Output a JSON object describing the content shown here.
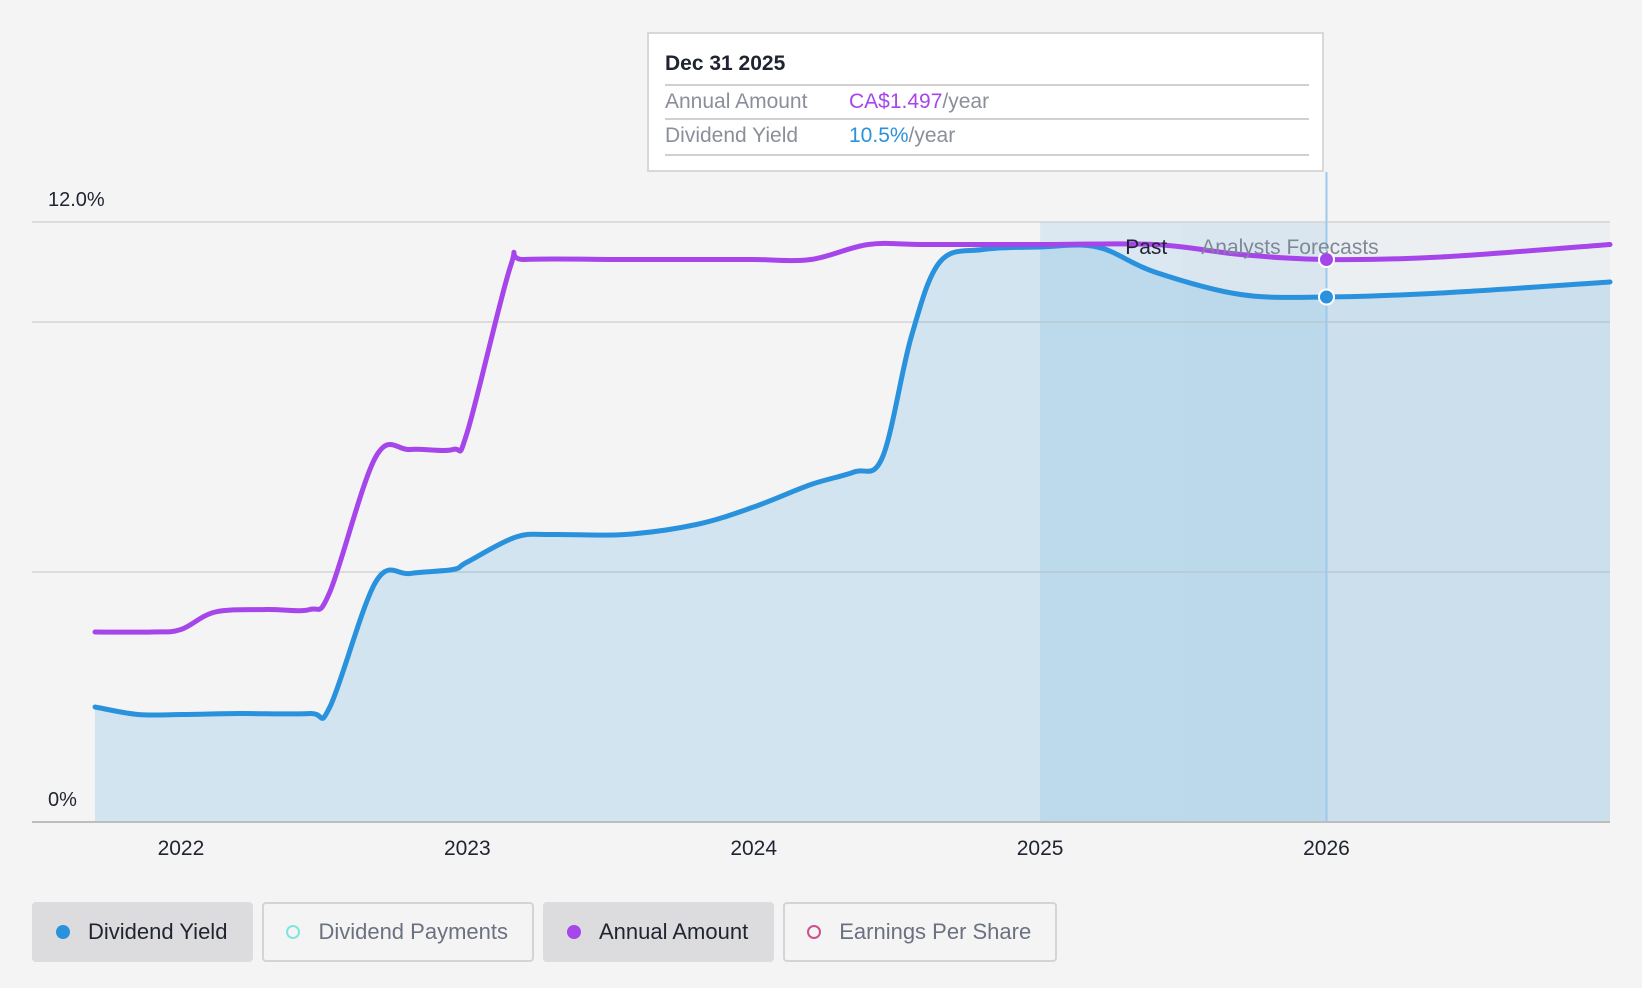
{
  "tooltip": {
    "date": "Dec 31 2025",
    "rows": [
      {
        "label": "Annual Amount",
        "value": "CA$1.497",
        "suffix": "/year",
        "color": "#a646ea"
      },
      {
        "label": "Dividend Yield",
        "value": "10.5%",
        "suffix": "/year",
        "color": "#2a92dd"
      }
    ]
  },
  "legend": [
    {
      "label": "Dividend Yield",
      "active": true,
      "color": "#2a92dd",
      "filled": true
    },
    {
      "label": "Dividend Payments",
      "active": false,
      "color": "#7ee6dd",
      "filled": false
    },
    {
      "label": "Annual Amount",
      "active": true,
      "color": "#a646ea",
      "filled": true
    },
    {
      "label": "Earnings Per Share",
      "active": false,
      "color": "#d0508c",
      "filled": false
    }
  ],
  "chart_data": {
    "type": "line",
    "y_ticks": [
      "12.0%",
      "0%"
    ],
    "ylim": [
      0,
      12.0
    ],
    "x_ticks": [
      "2022",
      "2023",
      "2024",
      "2025",
      "2026"
    ],
    "xlim": [
      2021.48,
      2026.99
    ],
    "region_labels": {
      "past": "Past",
      "forecast": "Analysts Forecasts"
    },
    "past_start": 2025.0,
    "forecast_start": 2025.5,
    "highlight_x": 2026.0,
    "series": [
      {
        "name": "Dividend Yield",
        "color": "#2a92dd",
        "fill": true,
        "points": [
          [
            2021.7,
            2.3
          ],
          [
            2021.85,
            2.15
          ],
          [
            2022.0,
            2.15
          ],
          [
            2022.2,
            2.17
          ],
          [
            2022.45,
            2.17
          ],
          [
            2022.52,
            2.3
          ],
          [
            2022.68,
            4.8
          ],
          [
            2022.8,
            4.97
          ],
          [
            2022.95,
            5.05
          ],
          [
            2023.0,
            5.2
          ],
          [
            2023.17,
            5.7
          ],
          [
            2023.3,
            5.75
          ],
          [
            2023.55,
            5.75
          ],
          [
            2023.8,
            5.95
          ],
          [
            2024.0,
            6.3
          ],
          [
            2024.2,
            6.75
          ],
          [
            2024.35,
            7.0
          ],
          [
            2024.45,
            7.3
          ],
          [
            2024.55,
            9.7
          ],
          [
            2024.65,
            11.2
          ],
          [
            2024.8,
            11.45
          ],
          [
            2025.0,
            11.5
          ],
          [
            2025.2,
            11.5
          ],
          [
            2025.4,
            11.0
          ],
          [
            2025.7,
            10.55
          ],
          [
            2026.0,
            10.5
          ],
          [
            2026.4,
            10.58
          ],
          [
            2026.99,
            10.8
          ]
        ]
      },
      {
        "name": "Annual Amount",
        "color": "#a646ea",
        "fill": false,
        "points": [
          [
            2021.7,
            3.8
          ],
          [
            2021.9,
            3.8
          ],
          [
            2022.0,
            3.85
          ],
          [
            2022.12,
            4.2
          ],
          [
            2022.3,
            4.25
          ],
          [
            2022.45,
            4.25
          ],
          [
            2022.52,
            4.6
          ],
          [
            2022.68,
            7.3
          ],
          [
            2022.8,
            7.45
          ],
          [
            2022.95,
            7.45
          ],
          [
            2023.0,
            7.8
          ],
          [
            2023.15,
            11.1
          ],
          [
            2023.2,
            11.25
          ],
          [
            2023.55,
            11.25
          ],
          [
            2023.85,
            11.25
          ],
          [
            2024.0,
            11.25
          ],
          [
            2024.2,
            11.25
          ],
          [
            2024.4,
            11.55
          ],
          [
            2024.6,
            11.55
          ],
          [
            2025.0,
            11.55
          ],
          [
            2025.4,
            11.55
          ],
          [
            2025.7,
            11.35
          ],
          [
            2026.0,
            11.25
          ],
          [
            2026.4,
            11.3
          ],
          [
            2026.99,
            11.55
          ]
        ]
      }
    ]
  }
}
